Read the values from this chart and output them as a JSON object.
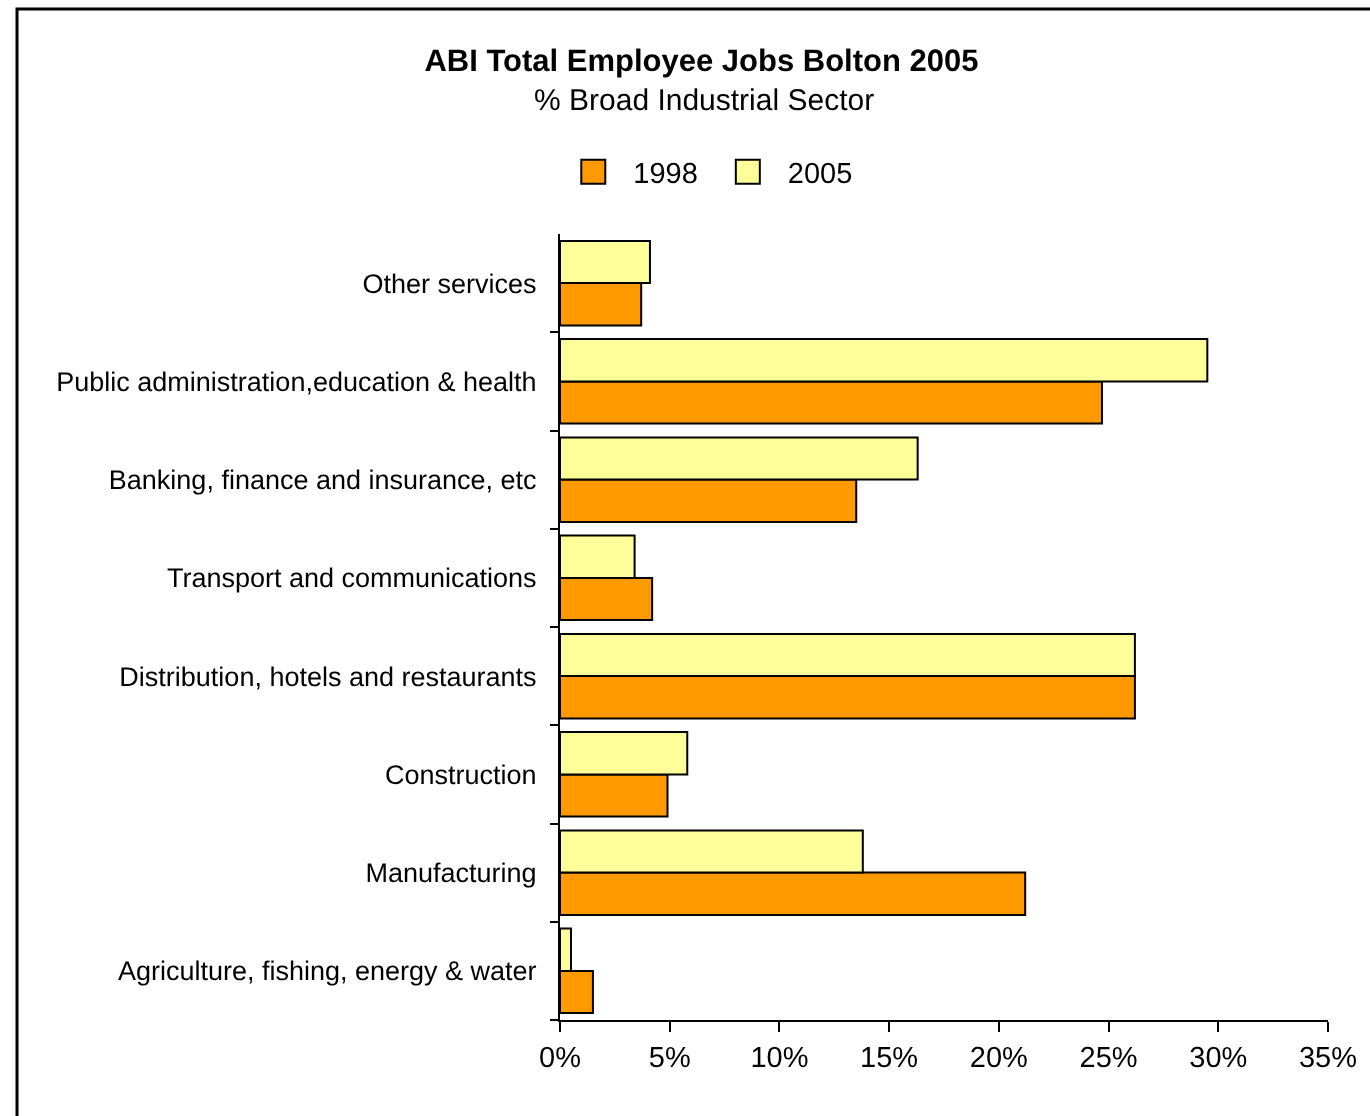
{
  "chart_data": {
    "type": "bar",
    "orientation": "horizontal",
    "title": "ABI Total Employee Jobs Bolton 2005",
    "subtitle": "% Broad Industrial Sector",
    "categories": [
      "Other services",
      "Public administration,education & health",
      "Banking, finance and insurance, etc",
      "Transport and communications",
      "Distribution, hotels and restaurants",
      "Construction",
      "Manufacturing",
      "Agriculture, fishing, energy & water"
    ],
    "series": [
      {
        "name": "1998",
        "color": "#ff9900",
        "values": [
          3.7,
          24.7,
          13.5,
          4.2,
          26.2,
          4.9,
          21.2,
          1.5
        ]
      },
      {
        "name": "2005",
        "color": "#ffff99",
        "values": [
          4.1,
          29.5,
          16.3,
          3.4,
          26.2,
          5.8,
          13.8,
          0.5
        ]
      }
    ],
    "xlim": [
      0,
      35
    ],
    "xticks": [
      {
        "value": 0,
        "label": "0%"
      },
      {
        "value": 5,
        "label": "5%"
      },
      {
        "value": 10,
        "label": "10%"
      },
      {
        "value": 15,
        "label": "15%"
      },
      {
        "value": 20,
        "label": "20%"
      },
      {
        "value": 25,
        "label": "25%"
      },
      {
        "value": 30,
        "label": "30%"
      },
      {
        "value": 35,
        "label": "35%"
      }
    ],
    "legend": "top"
  }
}
